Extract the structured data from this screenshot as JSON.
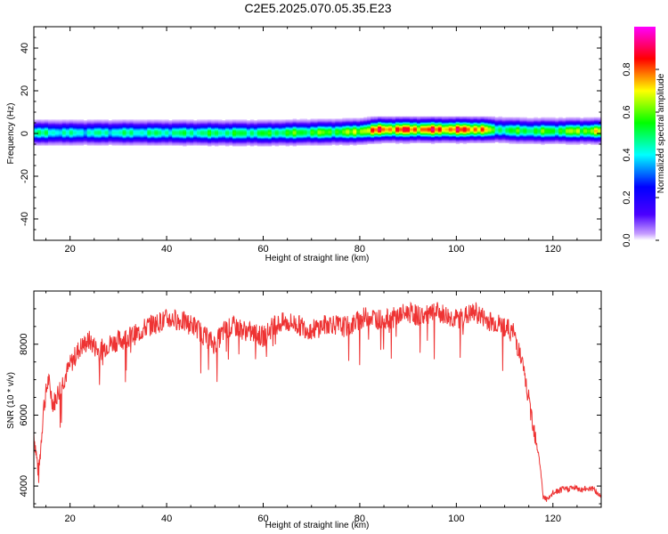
{
  "figure": {
    "title": "C2E5.2025.070.05.35.E23"
  },
  "chart_data": [
    {
      "type": "heatmap",
      "xlabel": "Height of straight line (km)",
      "ylabel": "Frequency (Hz)",
      "xlim": [
        12.5,
        130
      ],
      "ylim": [
        -50,
        50
      ],
      "x_ticks": [
        20,
        40,
        60,
        80,
        100,
        120
      ],
      "y_ticks": [
        -40,
        -20,
        0,
        20,
        40
      ],
      "colorbar": {
        "label": "Normalized spectral amplitude",
        "range": [
          0,
          1
        ],
        "ticks": [
          "0.0",
          "0.2",
          "0.4",
          "0.6",
          "0.8"
        ],
        "colormap": "rainbow (white-violet-blue-cyan-green-yellow-red-magenta)"
      },
      "band_center_hz": [
        {
          "x": 12.5,
          "f": 0.5
        },
        {
          "x": 30,
          "f": 0.5
        },
        {
          "x": 60,
          "f": 0.3
        },
        {
          "x": 80,
          "f": 1.0
        },
        {
          "x": 84,
          "f": 2.0
        },
        {
          "x": 100,
          "f": 2.0
        },
        {
          "x": 106,
          "f": 2.0
        },
        {
          "x": 115,
          "f": 1.3
        },
        {
          "x": 130,
          "f": 1.3
        }
      ],
      "band_peak_amplitude": [
        {
          "x": 12.5,
          "a": 0.55
        },
        {
          "x": 20,
          "a": 0.5
        },
        {
          "x": 40,
          "a": 0.55
        },
        {
          "x": 60,
          "a": 0.6
        },
        {
          "x": 78,
          "a": 0.7
        },
        {
          "x": 84,
          "a": 0.95
        },
        {
          "x": 105,
          "a": 0.95
        },
        {
          "x": 108,
          "a": 0.6
        },
        {
          "x": 120,
          "a": 0.65
        },
        {
          "x": 130,
          "a": 0.8
        }
      ],
      "band_halfwidth_hz": 4
    },
    {
      "type": "line",
      "xlabel": "Height of straight line (km)",
      "ylabel": "SNR (10 * v/v)",
      "xlim": [
        12.5,
        130
      ],
      "ylim": [
        3400,
        9500
      ],
      "x_ticks": [
        20,
        40,
        60,
        80,
        100,
        120
      ],
      "y_ticks": [
        4000,
        6000,
        8000
      ],
      "color": "#ee3333",
      "series": [
        {
          "x": [
            12.5,
            13.5,
            14.5,
            15.5,
            16.5,
            18,
            20,
            22,
            24,
            26,
            28,
            30,
            32,
            34,
            36,
            38,
            40,
            42,
            44,
            46,
            48,
            50,
            52,
            54,
            56,
            58,
            60,
            62,
            64,
            66,
            68,
            70,
            72,
            74,
            76,
            78,
            80,
            82,
            84,
            86,
            88,
            90,
            92,
            94,
            96,
            98,
            100,
            102,
            104,
            106,
            108,
            110,
            112,
            113,
            114,
            115,
            116,
            117,
            118,
            119,
            120,
            122,
            124,
            126,
            128,
            130
          ],
          "y": [
            5500,
            4300,
            6200,
            7000,
            6300,
            6800,
            7400,
            7900,
            8100,
            7800,
            8000,
            8100,
            8200,
            8300,
            8500,
            8600,
            8700,
            8700,
            8600,
            8500,
            8200,
            8000,
            8400,
            8500,
            8400,
            8300,
            8200,
            8500,
            8600,
            8600,
            8500,
            8400,
            8500,
            8600,
            8500,
            8500,
            8700,
            8800,
            8700,
            8700,
            8800,
            8900,
            8800,
            8800,
            8900,
            8800,
            8700,
            8800,
            8900,
            8700,
            8600,
            8500,
            8300,
            7800,
            7200,
            6400,
            5700,
            5000,
            3700,
            3600,
            3800,
            3900,
            3950,
            3900,
            3950,
            3700
          ]
        }
      ]
    }
  ]
}
